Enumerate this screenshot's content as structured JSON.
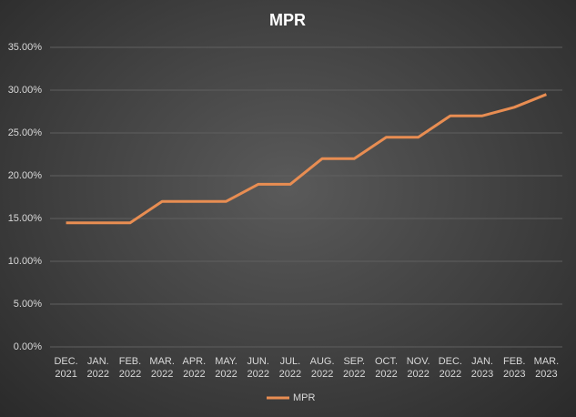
{
  "chart_data": {
    "type": "line",
    "title": "MPR",
    "categories": [
      "DEC.\n2021",
      "JAN.\n2022",
      "FEB.\n2022",
      "MAR.\n2022",
      "APR.\n2022",
      "MAY.\n2022",
      "JUN.\n2022",
      "JUL.\n2022",
      "AUG.\n2022",
      "SEP.\n2022",
      "OCT.\n2022",
      "NOV.\n2022",
      "DEC.\n2022",
      "JAN.\n2023",
      "FEB.\n2023",
      "MAR.\n2023"
    ],
    "series": [
      {
        "name": "MPR",
        "color": "#e88d52",
        "values": [
          14.5,
          14.5,
          14.5,
          17,
          17,
          17,
          19,
          19,
          22,
          22,
          24.5,
          24.5,
          27,
          27,
          28,
          29.5
        ]
      }
    ],
    "ylim": [
      0,
      35
    ],
    "yticks": [
      {
        "value": 0,
        "label": "0.00%"
      },
      {
        "value": 5,
        "label": "5.00%"
      },
      {
        "value": 10,
        "label": "10.00%"
      },
      {
        "value": 15,
        "label": "15.00%"
      },
      {
        "value": 20,
        "label": "20.00%"
      },
      {
        "value": 25,
        "label": "25.00%"
      },
      {
        "value": 30,
        "label": "30.00%"
      },
      {
        "value": 35,
        "label": "35.00%"
      }
    ],
    "grid": true,
    "legend": "bottom"
  }
}
